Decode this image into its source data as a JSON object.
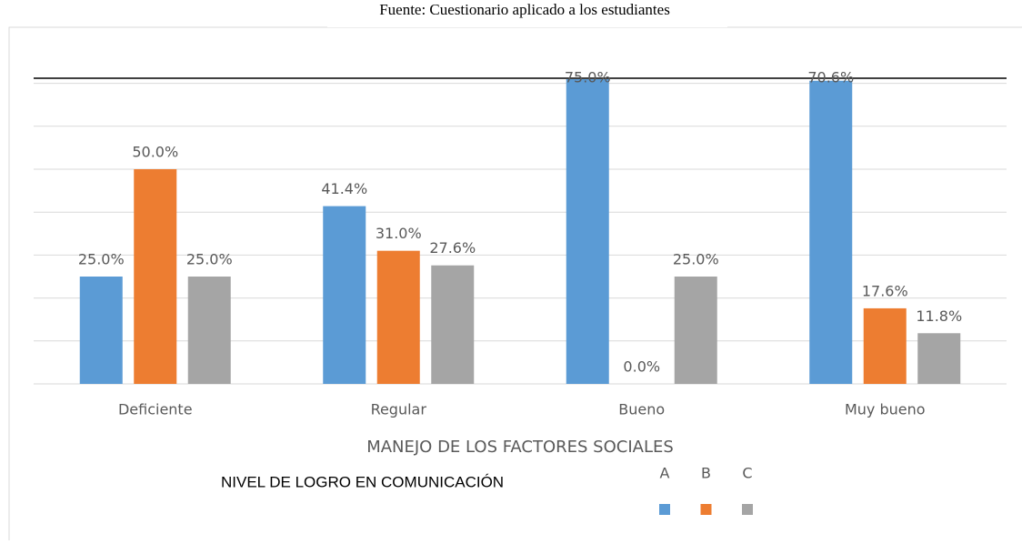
{
  "chart_data": {
    "type": "bar",
    "title": "Fuente: Cuestionario aplicado a los estudiantes",
    "x_label": "MANEJO DE LOS FACTORES SOCIALES",
    "legend_title": "NIVEL DE LOGRO EN COMUNICACIÓN",
    "categories": [
      "Deficiente",
      "Regular",
      "Bueno",
      "Muy bueno"
    ],
    "series": [
      {
        "name": "A",
        "color": "#5b9bd5",
        "values": [
          25.0,
          41.4,
          75.0,
          70.6
        ],
        "value_labels": [
          "25.0%",
          "41.4%",
          "75.0%",
          "70.6%"
        ]
      },
      {
        "name": "B",
        "color": "#ed7d31",
        "values": [
          50.0,
          31.0,
          0.0,
          17.6
        ],
        "value_labels": [
          "50.0%",
          "31.0%",
          "0.0%",
          "17.6%"
        ]
      },
      {
        "name": "C",
        "color": "#a5a5a5",
        "values": [
          25.0,
          27.6,
          25.0,
          11.8
        ],
        "value_labels": [
          "25.0%",
          "27.6%",
          "25.0%",
          "11.8%"
        ]
      }
    ],
    "ylim": [
      0,
      80
    ],
    "yticks": [
      0,
      10,
      20,
      30,
      40,
      50,
      60,
      70
    ],
    "grid": true
  }
}
